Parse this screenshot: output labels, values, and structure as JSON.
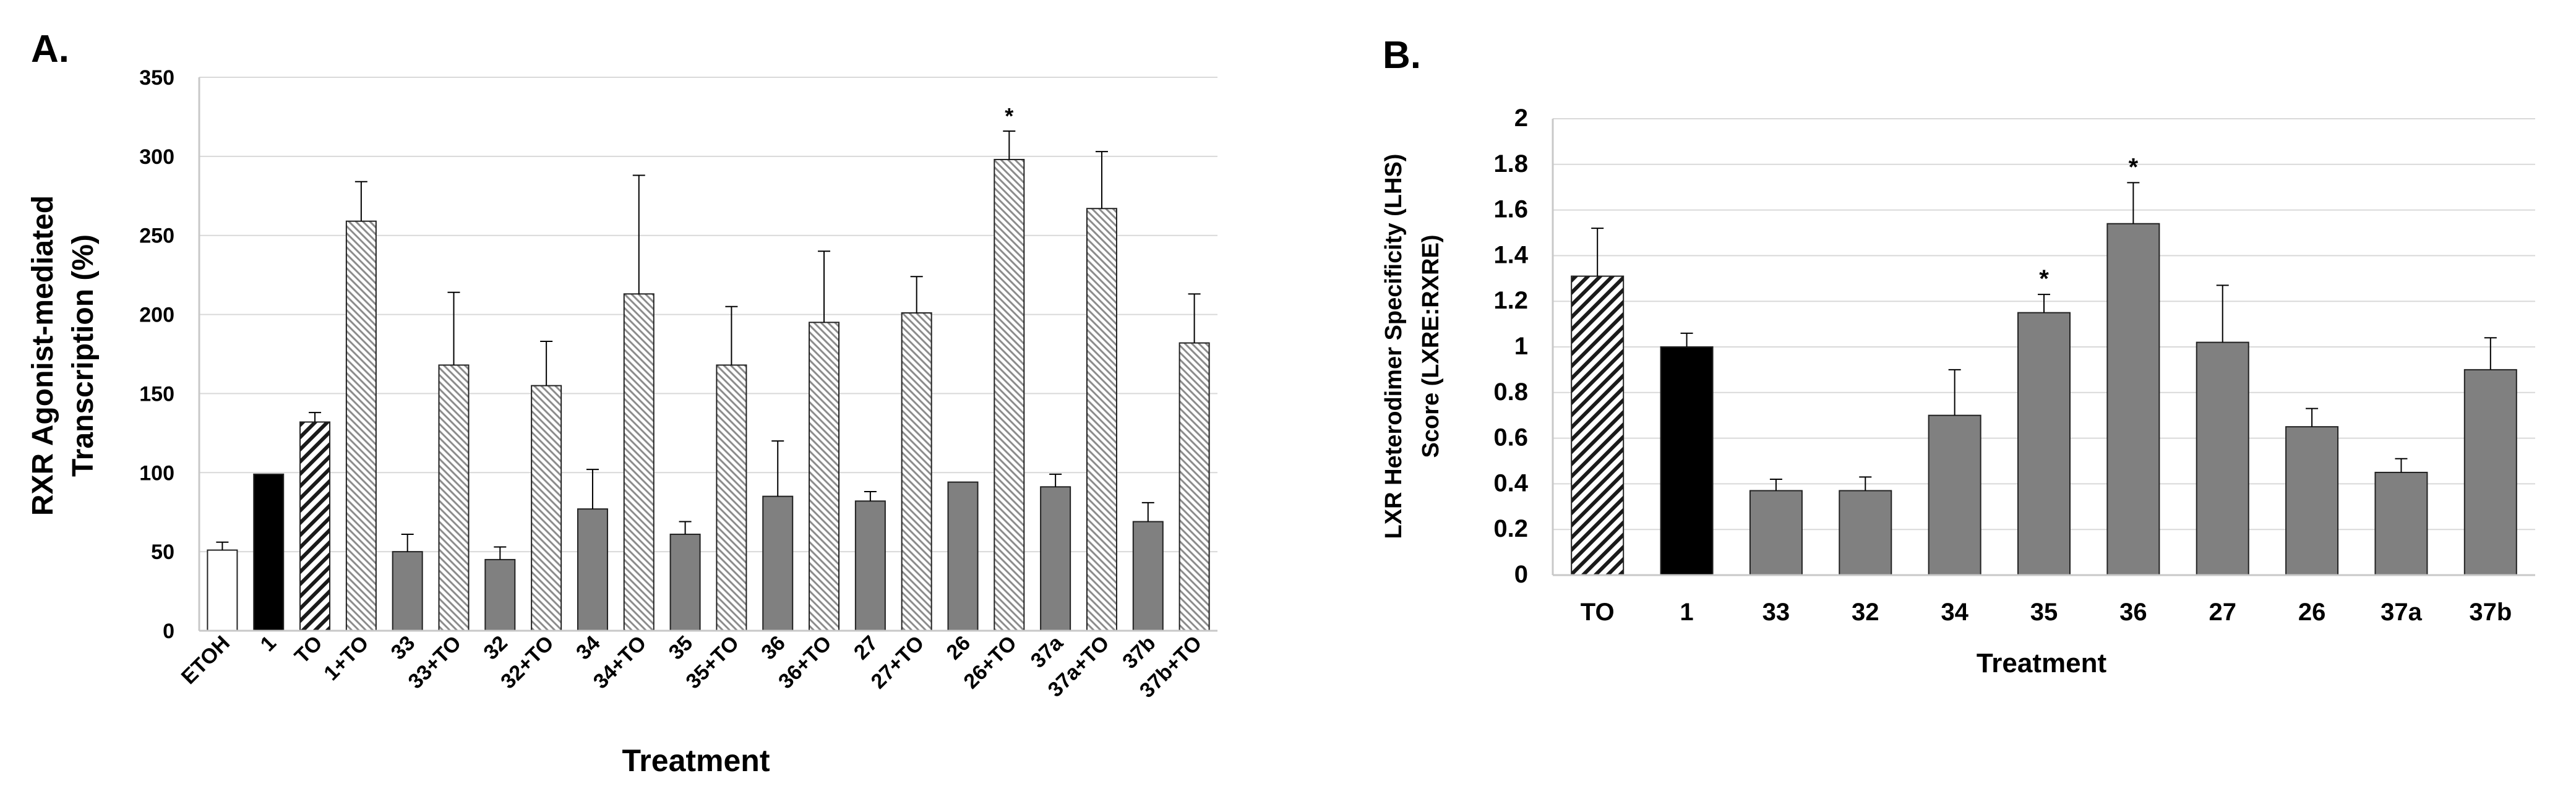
{
  "colors": {
    "etoh_fill": "#ffffff",
    "agonist_fill": "#000000",
    "to_hatch": "#1a1a1a",
    "combo_hatch": "#8c8c8c",
    "compound_fill": "#808080",
    "grid": "#d9d9d9",
    "axis": "#c8c8c8",
    "text": "#000000",
    "bar_edge": "#222222"
  },
  "chart_data": [
    {
      "panel_label": "A.",
      "type": "bar",
      "ylabel_line1": "RXR Agonist-mediated",
      "ylabel_line2": "Transcription (%)",
      "xlabel": "Treatment",
      "ylim": [
        0,
        350
      ],
      "yticks": [
        0,
        50,
        100,
        150,
        200,
        250,
        300,
        350
      ],
      "grid": true,
      "categories": [
        "ETOH",
        "1",
        "TO",
        "1+TO",
        "33",
        "33+TO",
        "32",
        "32+TO",
        "34",
        "34+TO",
        "35",
        "35+TO",
        "36",
        "36+TO",
        "27",
        "27+TO",
        "26",
        "26+TO",
        "37a",
        "37a+TO",
        "37b",
        "37b+TO"
      ],
      "values": [
        51,
        99,
        132,
        259,
        50,
        168,
        45,
        155,
        77,
        213,
        61,
        168,
        85,
        195,
        82,
        201,
        94,
        298,
        91,
        267,
        69,
        182
      ],
      "errors": [
        5,
        0,
        6,
        25,
        11,
        46,
        8,
        28,
        25,
        75,
        8,
        37,
        35,
        45,
        6,
        23,
        0,
        18,
        8,
        36,
        12,
        31
      ],
      "styles": [
        "white",
        "black",
        "diag-dark",
        "diag-light",
        "solid",
        "diag-light",
        "solid",
        "diag-light",
        "solid",
        "diag-light",
        "solid",
        "diag-light",
        "solid",
        "diag-light",
        "solid",
        "diag-light",
        "solid",
        "diag-light",
        "solid",
        "diag-light",
        "solid",
        "diag-light"
      ],
      "significance": [
        "",
        "",
        "",
        "",
        "",
        "",
        "",
        "",
        "",
        "",
        "",
        "",
        "",
        "",
        "",
        "",
        "",
        "*",
        "",
        "",
        "",
        ""
      ]
    },
    {
      "panel_label": "B.",
      "type": "bar",
      "ylabel_line1": "LXR Heterodimer Specificity (LHS)",
      "ylabel_line2": "Score (LXRE:RXRE)",
      "xlabel": "Treatment",
      "ylim": [
        0,
        2
      ],
      "yticks": [
        0,
        0.2,
        0.4,
        0.6,
        0.8,
        1,
        1.2,
        1.4,
        1.6,
        1.8,
        2
      ],
      "grid": true,
      "categories": [
        "TO",
        "1",
        "33",
        "32",
        "34",
        "35",
        "36",
        "27",
        "26",
        "37a",
        "37b"
      ],
      "values": [
        1.31,
        1.0,
        0.37,
        0.37,
        0.7,
        1.15,
        1.54,
        1.02,
        0.65,
        0.45,
        0.9
      ],
      "errors": [
        0.21,
        0.06,
        0.05,
        0.06,
        0.2,
        0.08,
        0.18,
        0.25,
        0.08,
        0.06,
        0.14
      ],
      "styles": [
        "diag-dark",
        "black",
        "solid",
        "solid",
        "solid",
        "solid",
        "solid",
        "solid",
        "solid",
        "solid",
        "solid"
      ],
      "significance": [
        "",
        "",
        "",
        "",
        "",
        "*",
        "*",
        "",
        "",
        "",
        ""
      ]
    }
  ]
}
